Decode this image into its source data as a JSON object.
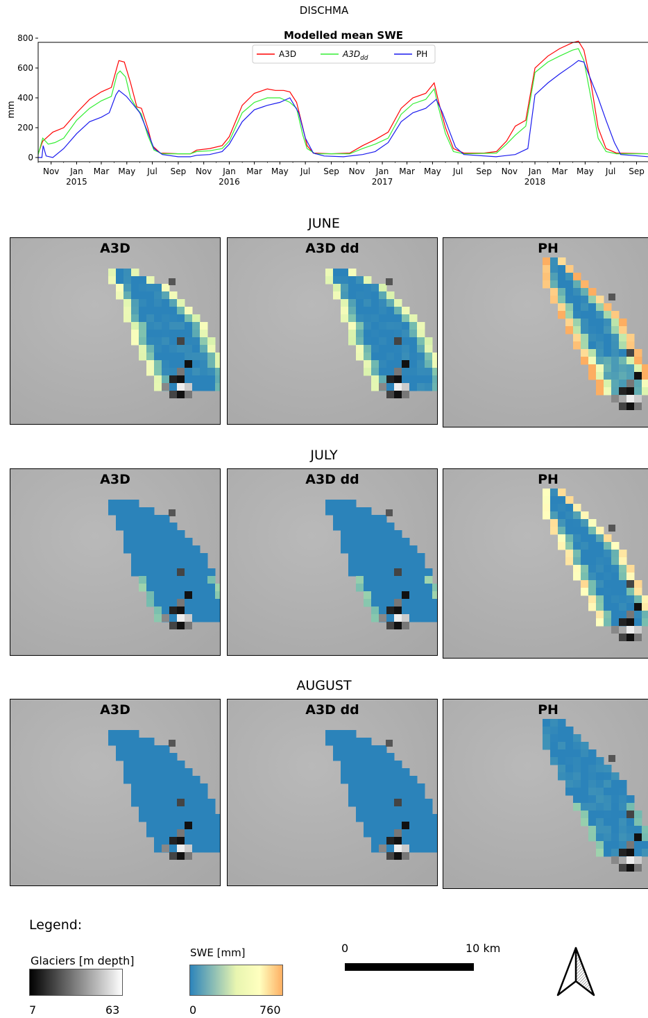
{
  "figure": {
    "title": "DISCHMA"
  },
  "chart_data": {
    "type": "line",
    "title": "Modelled mean SWE",
    "ylabel": "mm",
    "ylim": [
      0,
      800
    ],
    "yticks": [
      0,
      200,
      400,
      600,
      800
    ],
    "xlim": [
      "2014-10-01",
      "2018-09-30"
    ],
    "x_ticks": [
      {
        "date": "2014-11-01",
        "label": "Nov",
        "year": ""
      },
      {
        "date": "2015-01-01",
        "label": "Jan",
        "year": "2015"
      },
      {
        "date": "2015-03-01",
        "label": "Mar",
        "year": ""
      },
      {
        "date": "2015-05-01",
        "label": "May",
        "year": ""
      },
      {
        "date": "2015-07-01",
        "label": "Jul",
        "year": ""
      },
      {
        "date": "2015-09-01",
        "label": "Sep",
        "year": ""
      },
      {
        "date": "2015-11-01",
        "label": "Nov",
        "year": ""
      },
      {
        "date": "2016-01-01",
        "label": "Jan",
        "year": "2016"
      },
      {
        "date": "2016-03-01",
        "label": "Mar",
        "year": ""
      },
      {
        "date": "2016-05-01",
        "label": "May",
        "year": ""
      },
      {
        "date": "2016-07-01",
        "label": "Jul",
        "year": ""
      },
      {
        "date": "2016-09-01",
        "label": "Sep",
        "year": ""
      },
      {
        "date": "2016-11-01",
        "label": "Nov",
        "year": ""
      },
      {
        "date": "2017-01-01",
        "label": "Jan",
        "year": "2017"
      },
      {
        "date": "2017-03-01",
        "label": "Mar",
        "year": ""
      },
      {
        "date": "2017-05-01",
        "label": "May",
        "year": ""
      },
      {
        "date": "2017-07-01",
        "label": "Jul",
        "year": ""
      },
      {
        "date": "2017-09-01",
        "label": "Sep",
        "year": ""
      },
      {
        "date": "2017-11-01",
        "label": "Nov",
        "year": ""
      },
      {
        "date": "2018-01-01",
        "label": "Jan",
        "year": "2018"
      },
      {
        "date": "2018-03-01",
        "label": "Mar",
        "year": ""
      },
      {
        "date": "2018-05-01",
        "label": "May",
        "year": ""
      },
      {
        "date": "2018-07-01",
        "label": "Jul",
        "year": ""
      },
      {
        "date": "2018-09-01",
        "label": "Sep",
        "year": ""
      }
    ],
    "legend": "top-center",
    "series": [
      {
        "name": "A3D",
        "name_sub": "",
        "color": "#ff0000",
        "points": [
          [
            "2014-10-01",
            25
          ],
          [
            "2014-10-12",
            110
          ],
          [
            "2014-10-20",
            130
          ],
          [
            "2014-11-05",
            170
          ],
          [
            "2014-12-01",
            200
          ],
          [
            "2015-01-01",
            300
          ],
          [
            "2015-02-01",
            390
          ],
          [
            "2015-03-01",
            440
          ],
          [
            "2015-03-25",
            470
          ],
          [
            "2015-04-05",
            580
          ],
          [
            "2015-04-12",
            650
          ],
          [
            "2015-04-25",
            640
          ],
          [
            "2015-05-10",
            500
          ],
          [
            "2015-05-25",
            340
          ],
          [
            "2015-06-05",
            330
          ],
          [
            "2015-06-20",
            200
          ],
          [
            "2015-07-01",
            80
          ],
          [
            "2015-07-20",
            30
          ],
          [
            "2015-09-01",
            25
          ],
          [
            "2015-09-30",
            25
          ],
          [
            "2015-10-15",
            50
          ],
          [
            "2015-11-15",
            60
          ],
          [
            "2015-12-15",
            80
          ],
          [
            "2016-01-01",
            140
          ],
          [
            "2016-02-01",
            350
          ],
          [
            "2016-03-01",
            430
          ],
          [
            "2016-04-01",
            460
          ],
          [
            "2016-04-20",
            450
          ],
          [
            "2016-05-10",
            450
          ],
          [
            "2016-05-25",
            440
          ],
          [
            "2016-06-10",
            370
          ],
          [
            "2016-06-25",
            200
          ],
          [
            "2016-07-05",
            80
          ],
          [
            "2016-07-20",
            30
          ],
          [
            "2016-09-01",
            25
          ],
          [
            "2016-10-15",
            30
          ],
          [
            "2016-11-15",
            80
          ],
          [
            "2016-12-15",
            120
          ],
          [
            "2017-01-15",
            170
          ],
          [
            "2017-02-15",
            330
          ],
          [
            "2017-03-15",
            400
          ],
          [
            "2017-04-15",
            430
          ],
          [
            "2017-05-05",
            500
          ],
          [
            "2017-05-15",
            380
          ],
          [
            "2017-06-01",
            200
          ],
          [
            "2017-06-20",
            60
          ],
          [
            "2017-07-15",
            30
          ],
          [
            "2017-09-01",
            30
          ],
          [
            "2017-10-01",
            40
          ],
          [
            "2017-10-25",
            110
          ],
          [
            "2017-11-15",
            210
          ],
          [
            "2017-12-10",
            250
          ],
          [
            "2018-01-01",
            600
          ],
          [
            "2018-02-01",
            680
          ],
          [
            "2018-03-01",
            730
          ],
          [
            "2018-04-01",
            770
          ],
          [
            "2018-04-15",
            780
          ],
          [
            "2018-04-28",
            720
          ],
          [
            "2018-05-15",
            500
          ],
          [
            "2018-06-01",
            200
          ],
          [
            "2018-06-20",
            60
          ],
          [
            "2018-07-15",
            30
          ],
          [
            "2018-09-30",
            25
          ]
        ]
      },
      {
        "name": "A3D",
        "name_sub": "dd",
        "color": "#33ee33",
        "points": [
          [
            "2014-10-01",
            20
          ],
          [
            "2014-10-12",
            130
          ],
          [
            "2014-10-25",
            90
          ],
          [
            "2014-11-10",
            100
          ],
          [
            "2014-12-01",
            130
          ],
          [
            "2015-01-01",
            250
          ],
          [
            "2015-02-01",
            330
          ],
          [
            "2015-03-01",
            380
          ],
          [
            "2015-03-25",
            410
          ],
          [
            "2015-04-08",
            560
          ],
          [
            "2015-04-15",
            580
          ],
          [
            "2015-04-28",
            540
          ],
          [
            "2015-05-10",
            400
          ],
          [
            "2015-05-25",
            330
          ],
          [
            "2015-06-05",
            290
          ],
          [
            "2015-06-20",
            150
          ],
          [
            "2015-07-05",
            50
          ],
          [
            "2015-07-25",
            25
          ],
          [
            "2015-09-30",
            25
          ],
          [
            "2015-10-15",
            40
          ],
          [
            "2015-11-15",
            45
          ],
          [
            "2015-12-15",
            60
          ],
          [
            "2016-01-01",
            110
          ],
          [
            "2016-02-01",
            300
          ],
          [
            "2016-03-01",
            370
          ],
          [
            "2016-04-01",
            400
          ],
          [
            "2016-05-01",
            400
          ],
          [
            "2016-05-25",
            370
          ],
          [
            "2016-06-10",
            330
          ],
          [
            "2016-06-25",
            150
          ],
          [
            "2016-07-05",
            60
          ],
          [
            "2016-07-25",
            25
          ],
          [
            "2016-10-15",
            25
          ],
          [
            "2016-11-15",
            60
          ],
          [
            "2016-12-15",
            90
          ],
          [
            "2017-01-15",
            130
          ],
          [
            "2017-02-15",
            290
          ],
          [
            "2017-03-15",
            360
          ],
          [
            "2017-04-15",
            390
          ],
          [
            "2017-05-05",
            460
          ],
          [
            "2017-05-15",
            340
          ],
          [
            "2017-06-01",
            160
          ],
          [
            "2017-06-20",
            40
          ],
          [
            "2017-07-15",
            25
          ],
          [
            "2017-10-01",
            30
          ],
          [
            "2017-10-25",
            90
          ],
          [
            "2017-11-15",
            150
          ],
          [
            "2017-12-10",
            210
          ],
          [
            "2018-01-01",
            570
          ],
          [
            "2018-02-01",
            640
          ],
          [
            "2018-03-01",
            680
          ],
          [
            "2018-04-01",
            720
          ],
          [
            "2018-04-15",
            730
          ],
          [
            "2018-04-28",
            650
          ],
          [
            "2018-05-15",
            400
          ],
          [
            "2018-06-01",
            130
          ],
          [
            "2018-06-20",
            40
          ],
          [
            "2018-07-15",
            25
          ],
          [
            "2018-09-30",
            25
          ]
        ]
      },
      {
        "name": "PH",
        "name_sub": "",
        "color": "#1a1aee",
        "points": [
          [
            "2014-10-01",
            0
          ],
          [
            "2014-10-10",
            0
          ],
          [
            "2014-10-13",
            80
          ],
          [
            "2014-10-20",
            10
          ],
          [
            "2014-11-05",
            0
          ],
          [
            "2014-12-01",
            60
          ],
          [
            "2015-01-01",
            160
          ],
          [
            "2015-02-01",
            240
          ],
          [
            "2015-03-01",
            270
          ],
          [
            "2015-03-20",
            300
          ],
          [
            "2015-04-05",
            420
          ],
          [
            "2015-04-12",
            450
          ],
          [
            "2015-04-30",
            410
          ],
          [
            "2015-05-15",
            360
          ],
          [
            "2015-06-01",
            300
          ],
          [
            "2015-06-20",
            170
          ],
          [
            "2015-07-05",
            60
          ],
          [
            "2015-07-25",
            20
          ],
          [
            "2015-09-01",
            5
          ],
          [
            "2015-09-30",
            5
          ],
          [
            "2015-10-15",
            15
          ],
          [
            "2015-11-15",
            20
          ],
          [
            "2015-12-15",
            40
          ],
          [
            "2016-01-01",
            90
          ],
          [
            "2016-02-01",
            240
          ],
          [
            "2016-03-01",
            320
          ],
          [
            "2016-04-01",
            350
          ],
          [
            "2016-05-01",
            370
          ],
          [
            "2016-05-25",
            400
          ],
          [
            "2016-06-15",
            300
          ],
          [
            "2016-07-01",
            130
          ],
          [
            "2016-07-20",
            30
          ],
          [
            "2016-08-15",
            10
          ],
          [
            "2016-09-30",
            5
          ],
          [
            "2016-10-15",
            10
          ],
          [
            "2016-11-15",
            20
          ],
          [
            "2016-12-15",
            40
          ],
          [
            "2017-01-15",
            100
          ],
          [
            "2017-02-15",
            240
          ],
          [
            "2017-03-15",
            300
          ],
          [
            "2017-04-15",
            330
          ],
          [
            "2017-05-10",
            390
          ],
          [
            "2017-05-25",
            300
          ],
          [
            "2017-06-10",
            180
          ],
          [
            "2017-06-25",
            70
          ],
          [
            "2017-07-15",
            20
          ],
          [
            "2017-09-30",
            5
          ],
          [
            "2017-10-15",
            10
          ],
          [
            "2017-11-15",
            20
          ],
          [
            "2017-12-15",
            60
          ],
          [
            "2018-01-01",
            420
          ],
          [
            "2018-02-01",
            500
          ],
          [
            "2018-03-01",
            560
          ],
          [
            "2018-04-01",
            620
          ],
          [
            "2018-04-15",
            650
          ],
          [
            "2018-04-28",
            640
          ],
          [
            "2018-05-15",
            520
          ],
          [
            "2018-06-01",
            400
          ],
          [
            "2018-06-20",
            250
          ],
          [
            "2018-07-10",
            100
          ],
          [
            "2018-07-25",
            20
          ],
          [
            "2018-09-30",
            5
          ]
        ]
      }
    ]
  },
  "rows": [
    {
      "month": "JUNE",
      "panels": [
        "A3D",
        "A3D dd",
        "PH"
      ]
    },
    {
      "month": "JULY",
      "panels": [
        "A3D",
        "A3D dd",
        "PH"
      ]
    },
    {
      "month": "AUGUST",
      "panels": [
        "A3D",
        "A3D dd",
        "PH"
      ]
    }
  ],
  "legend": {
    "title": "Legend:",
    "glaciers": {
      "label": "Glaciers [m depth]",
      "min": "7",
      "max": "63"
    },
    "swe": {
      "label": "SWE [mm]",
      "min": "0",
      "max": "760"
    },
    "scale": {
      "zero": "0",
      "ten": "10 km"
    }
  },
  "colors": {
    "swe_low": "#2b83ba",
    "swe_mid": "#ffffbf",
    "swe_high": "#fdae61"
  }
}
